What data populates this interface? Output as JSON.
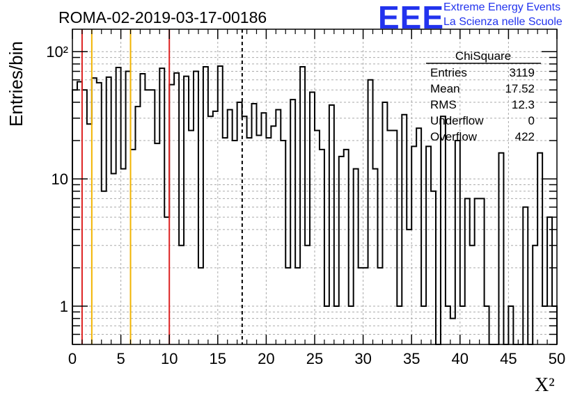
{
  "title": "ROMA-02-2019-03-17-00186",
  "brand": {
    "logo": "EEE",
    "line1": "Extreme Energy Events",
    "line2": "La Scienza nelle Scuole",
    "color": "#2233ee"
  },
  "stats": {
    "name": "ChiSquare",
    "rows": [
      {
        "label": "Entries",
        "value": "3119"
      },
      {
        "label": "Mean",
        "value": "17.52"
      },
      {
        "label": "RMS",
        "value": "12.3"
      },
      {
        "label": "Underflow",
        "value": "0"
      },
      {
        "label": "Overflow",
        "value": "422"
      }
    ]
  },
  "chart_data": {
    "type": "bar",
    "title": "ROMA-02-2019-03-17-00186",
    "xlabel": "X²",
    "ylabel": "Entries/bin",
    "xlim": [
      0,
      50
    ],
    "ylim": [
      0.5,
      150
    ],
    "yscale": "log",
    "grid": true,
    "bin_width": 0.5,
    "x_ticks": [
      "0",
      "5",
      "10",
      "15",
      "20",
      "25",
      "30",
      "35",
      "40",
      "45",
      "50"
    ],
    "y_ticks": [
      {
        "value": 1,
        "label": "1"
      },
      {
        "value": 10,
        "label": "10"
      },
      {
        "value": 100,
        "label": "10²"
      }
    ],
    "values": [
      50,
      58,
      50,
      27,
      62,
      57,
      8,
      63,
      11,
      75,
      12,
      70,
      17,
      37,
      67,
      50,
      50,
      19,
      74,
      5,
      55,
      68,
      3,
      64,
      24,
      70,
      2,
      76,
      31,
      34,
      77,
      21,
      35,
      20,
      40,
      31,
      21,
      39,
      22,
      33,
      21,
      26,
      35,
      20,
      2,
      42,
      2,
      76,
      3,
      48,
      24,
      17,
      1,
      38,
      1,
      15,
      17,
      1,
      12,
      2,
      2,
      60,
      12,
      2,
      40,
      24,
      24,
      1,
      32,
      4,
      18,
      25,
      1,
      18,
      8,
      0,
      31,
      1,
      0.8,
      20,
      1,
      7,
      3,
      7,
      7,
      1,
      0,
      0,
      16,
      0,
      1,
      0,
      0,
      6,
      0,
      3,
      16,
      1,
      5,
      1
    ],
    "vlines": [
      {
        "x": 1,
        "color": "#dd2222",
        "style": "solid"
      },
      {
        "x": 2,
        "color": "#f2b400",
        "style": "solid"
      },
      {
        "x": 6,
        "color": "#f2b400",
        "style": "solid"
      },
      {
        "x": 10,
        "color": "#dd2222",
        "style": "solid"
      },
      {
        "x": 17.52,
        "color": "#000000",
        "style": "dashed"
      }
    ]
  }
}
